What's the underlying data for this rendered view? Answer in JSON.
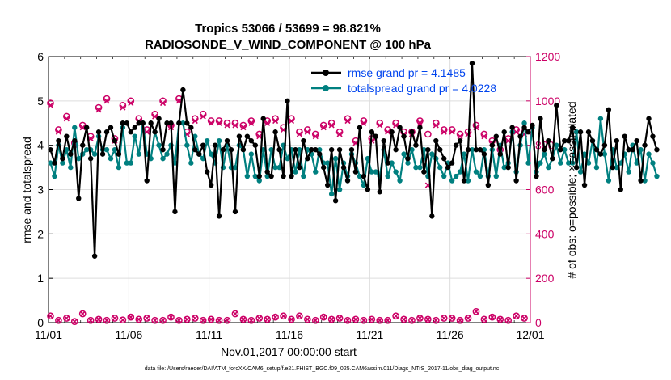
{
  "chart_data": {
    "type": "line",
    "title_line1": "Tropics 53066 / 53699 = 98.821%",
    "title_line2": "RADIOSONDE_V_WIND_COMPONENT @ 100 hPa",
    "ylabel_left": "rmse and totalspread",
    "ylabel_right": "# of obs: o=possible; ×=assimilated",
    "xlabel": "Nov.01,2017 00:00:00 start",
    "footer": "data file: /Users/raeder/DAI/ATM_forcXX/CAM6_setup/f.e21.FHIST_BGC.f09_025.CAM6assim.011/Diags_NTrS_2017-11/obs_diag_output.nc",
    "x_ticks": [
      "11/01",
      "11/06",
      "11/11",
      "11/16",
      "11/21",
      "11/26",
      "12/01"
    ],
    "x_tick_days": [
      0,
      5,
      10,
      15,
      20,
      25,
      30
    ],
    "xlim": [
      0,
      30
    ],
    "y_left_ticks": [
      "0",
      "1",
      "2",
      "3",
      "4",
      "5",
      "6"
    ],
    "ylim_left": [
      0,
      6
    ],
    "y_right_ticks": [
      "0",
      "200",
      "400",
      "600",
      "800",
      "1000",
      "1200"
    ],
    "ylim_right": [
      0,
      1200
    ],
    "colors": {
      "rmse": "#000000",
      "spread": "#008080",
      "obs": "#cc0066",
      "legend_text": "#0044ee",
      "grid": "#dddddd"
    },
    "series": [
      {
        "name": "rmse",
        "legend": "rmse grand pr = 4.1485",
        "x_start": 0.125,
        "x_step": 0.25,
        "values": [
          3.9,
          3.6,
          4.1,
          3.7,
          4.2,
          3.8,
          4.1,
          2.8,
          4.0,
          4.4,
          3.7,
          1.5,
          4.3,
          3.8,
          4.3,
          4.4,
          4.1,
          3.8,
          4.5,
          4.5,
          4.3,
          4.4,
          4.5,
          4.5,
          3.2,
          4.5,
          4.3,
          4.6,
          3.9,
          4.5,
          4.5,
          2.5,
          4.5,
          5.25,
          4.5,
          4.4,
          3.9,
          3.8,
          4.0,
          3.4,
          3.1,
          4.0,
          2.4,
          3.9,
          4.1,
          3.9,
          2.5,
          4.2,
          3.9,
          4.2,
          4.1,
          4.0,
          3.3,
          4.6,
          3.4,
          3.3,
          4.3,
          3.9,
          3.3,
          5.0,
          3.3,
          3.9,
          3.5,
          4.1,
          3.7,
          3.9,
          3.9,
          3.8,
          3.5,
          3.1,
          3.9,
          2.75,
          3.9,
          3.5,
          3.2,
          3.9,
          3.4,
          4.4,
          3.3,
          3.0,
          4.3,
          4.2,
          2.95,
          4.1,
          3.6,
          4.3,
          3.9,
          4.4,
          4.2,
          3.7,
          4.3,
          4.0,
          4.4,
          3.4,
          3.9,
          2.4,
          4.1,
          3.9,
          3.7,
          3.5,
          3.6,
          4.0,
          4.1,
          3.2,
          3.9,
          5.85,
          3.9,
          3.9,
          3.8,
          3.1,
          4.0,
          4.2,
          3.8,
          4.3,
          3.5,
          4.4,
          3.2,
          4.2,
          4.4,
          4.3,
          4.45,
          3.3,
          4.6,
          3.9,
          4.1,
          3.7,
          4.9,
          3.9,
          4.1,
          4.1,
          4.4,
          3.5,
          4.3,
          3.1,
          4.3,
          4.1,
          3.9,
          3.8,
          4.0,
          4.8,
          3.5,
          4.1,
          3.0,
          4.2,
          3.9,
          3.9,
          4.1,
          3.2,
          4.0,
          4.6,
          4.2,
          3.9
        ]
      },
      {
        "name": "totalspread",
        "legend": "totalspread grand pr = 4.0228",
        "x_start": 0.125,
        "x_step": 0.25,
        "values": [
          3.6,
          3.3,
          4.0,
          3.6,
          3.9,
          3.5,
          4.4,
          3.7,
          3.8,
          3.9,
          3.9,
          3.8,
          4.2,
          3.9,
          3.9,
          3.7,
          3.9,
          3.5,
          4.4,
          3.6,
          3.6,
          4.2,
          3.8,
          4.5,
          3.8,
          3.7,
          4.3,
          4.0,
          3.7,
          3.8,
          4.0,
          3.6,
          4.5,
          4.5,
          4.0,
          3.6,
          4.2,
          3.8,
          3.7,
          4.1,
          3.8,
          3.6,
          4.1,
          3.5,
          4.0,
          3.5,
          3.5,
          4.0,
          3.9,
          3.3,
          3.8,
          3.3,
          3.2,
          3.9,
          3.3,
          3.9,
          3.5,
          3.5,
          4.0,
          3.7,
          3.9,
          3.4,
          3.9,
          3.3,
          3.9,
          3.8,
          3.4,
          3.9,
          3.6,
          3.6,
          2.9,
          3.7,
          3.0,
          3.6,
          3.3,
          3.8,
          3.6,
          3.3,
          3.1,
          3.7,
          3.4,
          3.4,
          3.3,
          3.9,
          3.3,
          3.6,
          3.4,
          3.2,
          3.8,
          3.6,
          3.9,
          3.5,
          3.5,
          3.9,
          3.3,
          3.8,
          3.7,
          3.5,
          3.3,
          3.6,
          3.2,
          3.3,
          3.4,
          3.8,
          3.2,
          3.9,
          3.4,
          3.3,
          3.9,
          3.3,
          3.9,
          3.3,
          4.0,
          3.5,
          3.6,
          4.3,
          3.4,
          4.0,
          4.5,
          3.6,
          4.4,
          3.4,
          3.6,
          3.8,
          3.5,
          3.7,
          4.0,
          3.6,
          3.9,
          3.6,
          3.6,
          4.3,
          3.4,
          3.8,
          3.6,
          4.1,
          3.5,
          4.6,
          3.8,
          3.2,
          3.9,
          3.5,
          3.6,
          3.8,
          3.4,
          4.0,
          3.6,
          3.9,
          3.2,
          3.8,
          3.6,
          3.3
        ]
      },
      {
        "name": "obs_possible",
        "axis": "right",
        "marker": "circle",
        "x_start": 0.125,
        "x_step": 0.5,
        "values": [
          990,
          870,
          930,
          810,
          890,
          840,
          970,
          1010,
          830,
          980,
          1000,
          920,
          870,
          940,
          1000,
          890,
          1010,
          860,
          920,
          940,
          910,
          910,
          900,
          900,
          890,
          910,
          850,
          910,
          920,
          880,
          920,
          860,
          870,
          850,
          890,
          900,
          860,
          920,
          820,
          910,
          830,
          900,
          870,
          900,
          860,
          860,
          910,
          850,
          900,
          870,
          870,
          850,
          860,
          890,
          850,
          820,
          780,
          830,
          870,
          860
        ]
      },
      {
        "name": "obs_assimilated",
        "axis": "right",
        "marker": "x",
        "x_start": 0.125,
        "x_step": 0.5,
        "values": [
          980,
          860,
          920,
          800,
          880,
          830,
          960,
          1000,
          820,
          970,
          990,
          910,
          860,
          930,
          990,
          880,
          1000,
          850,
          910,
          930,
          900,
          900,
          890,
          890,
          880,
          900,
          840,
          900,
          910,
          870,
          910,
          850,
          860,
          840,
          880,
          890,
          850,
          910,
          810,
          900,
          820,
          890,
          860,
          890,
          850,
          850,
          900,
          620,
          890,
          860,
          860,
          840,
          850,
          880,
          840,
          810,
          770,
          820,
          860,
          850
        ]
      },
      {
        "name": "obs_bottom_possible",
        "axis": "right",
        "marker": "circle",
        "x_start": 0.125,
        "x_step": 0.5,
        "values": [
          30,
          10,
          20,
          5,
          40,
          10,
          15,
          10,
          20,
          12,
          25,
          15,
          20,
          10,
          10,
          25,
          10,
          15,
          20,
          10,
          15,
          10,
          10,
          40,
          15,
          10,
          20,
          15,
          25,
          30,
          15,
          30,
          15,
          10,
          25,
          15,
          20,
          10,
          15,
          10,
          15,
          10,
          10,
          30,
          15,
          10,
          20,
          15,
          10,
          20,
          20,
          10,
          20,
          50,
          15,
          25,
          15,
          10,
          30,
          20
        ]
      }
    ]
  }
}
